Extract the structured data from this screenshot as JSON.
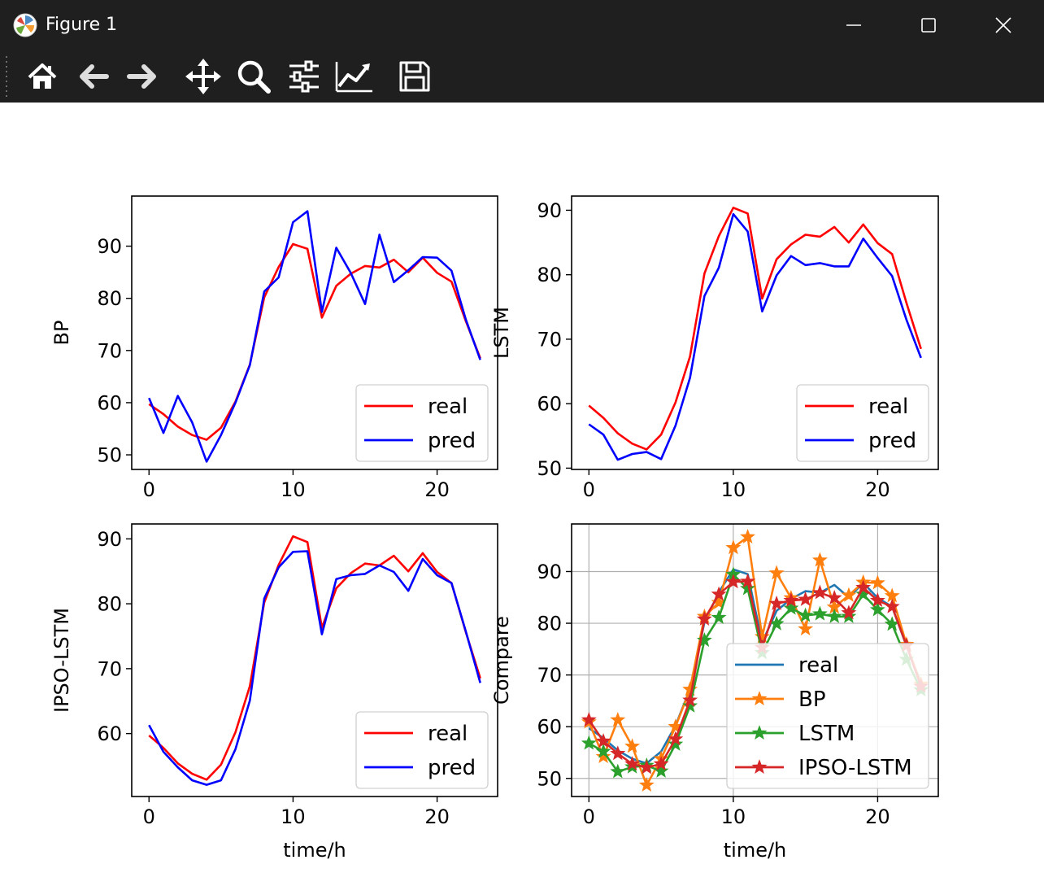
{
  "window": {
    "title": "Figure 1"
  },
  "toolbar": {
    "tools": [
      {
        "name": "home-icon"
      },
      {
        "name": "back-arrow-icon"
      },
      {
        "name": "forward-arrow-icon"
      },
      {
        "name": "pan-move-icon"
      },
      {
        "name": "zoom-magnifier-icon"
      },
      {
        "name": "subplots-config-icon"
      },
      {
        "name": "edit-axes-icon"
      },
      {
        "name": "save-disk-icon"
      }
    ]
  },
  "colors": {
    "real": "#ff0000",
    "pred": "#0000ff",
    "c_real": "#1f77b4",
    "c_bp": "#ff7f0e",
    "c_lstm": "#2ca02c",
    "c_ipso": "#d62728"
  },
  "chart_data": [
    {
      "type": "line",
      "xlabel": "",
      "ylabel": "BP",
      "xlim": [
        -1.2,
        24.2
      ],
      "ylim": [
        47.2,
        99.6
      ],
      "xticks": [
        0,
        10,
        20
      ],
      "yticks": [
        50,
        60,
        70,
        80,
        90
      ],
      "grid": false,
      "legend_position": "lower-right",
      "x": [
        0,
        1,
        2,
        3,
        4,
        5,
        6,
        7,
        8,
        9,
        10,
        11,
        12,
        13,
        14,
        15,
        16,
        17,
        18,
        19,
        20,
        21,
        22,
        23
      ],
      "series": [
        {
          "name": "real",
          "values": [
            59.7,
            57.8,
            55.4,
            53.8,
            52.9,
            55.2,
            60.2,
            67.3,
            80.2,
            86.0,
            90.4,
            89.5,
            76.3,
            82.4,
            84.7,
            86.2,
            85.9,
            87.4,
            85.0,
            87.8,
            84.9,
            83.2,
            75.6,
            68.5
          ]
        },
        {
          "name": "pred",
          "values": [
            60.9,
            54.2,
            61.3,
            56.2,
            48.7,
            53.8,
            60.0,
            67.2,
            81.3,
            84.0,
            94.6,
            96.7,
            77.4,
            89.7,
            84.9,
            78.9,
            92.2,
            83.1,
            85.4,
            87.9,
            87.8,
            85.3,
            75.9,
            68.2
          ]
        }
      ]
    },
    {
      "type": "line",
      "xlabel": "",
      "ylabel": "LSTM",
      "xlim": [
        -1.2,
        24.2
      ],
      "ylim": [
        49.8,
        92.2
      ],
      "xticks": [
        0,
        10,
        20
      ],
      "yticks": [
        50,
        60,
        70,
        80,
        90
      ],
      "grid": false,
      "legend_position": "lower-right",
      "x": [
        0,
        1,
        2,
        3,
        4,
        5,
        6,
        7,
        8,
        9,
        10,
        11,
        12,
        13,
        14,
        15,
        16,
        17,
        18,
        19,
        20,
        21,
        22,
        23
      ],
      "series": [
        {
          "name": "real",
          "values": [
            59.7,
            57.8,
            55.4,
            53.8,
            52.9,
            55.2,
            60.2,
            67.3,
            80.2,
            86.0,
            90.4,
            89.5,
            76.3,
            82.4,
            84.7,
            86.2,
            85.9,
            87.4,
            85.0,
            87.8,
            84.9,
            83.2,
            75.6,
            68.5
          ]
        },
        {
          "name": "pred",
          "values": [
            56.8,
            55.2,
            51.3,
            52.2,
            52.5,
            51.4,
            56.6,
            64.0,
            76.7,
            81.1,
            89.4,
            86.7,
            74.3,
            79.9,
            82.9,
            81.5,
            81.8,
            81.3,
            81.3,
            85.6,
            82.6,
            79.8,
            73.0,
            67.1
          ]
        }
      ]
    },
    {
      "type": "line",
      "xlabel": "time/h",
      "ylabel": "IPSO-LSTM",
      "xlim": [
        -1.2,
        24.2
      ],
      "ylim": [
        50.3,
        92.3
      ],
      "xticks": [
        0,
        10,
        20
      ],
      "yticks": [
        60,
        70,
        80,
        90
      ],
      "grid": false,
      "legend_position": "lower-right",
      "x": [
        0,
        1,
        2,
        3,
        4,
        5,
        6,
        7,
        8,
        9,
        10,
        11,
        12,
        13,
        14,
        15,
        16,
        17,
        18,
        19,
        20,
        21,
        22,
        23
      ],
      "series": [
        {
          "name": "real",
          "values": [
            59.7,
            57.8,
            55.4,
            53.8,
            52.9,
            55.2,
            60.2,
            67.3,
            80.2,
            86.0,
            90.4,
            89.5,
            76.3,
            82.4,
            84.7,
            86.2,
            85.9,
            87.4,
            85.0,
            87.8,
            84.9,
            83.2,
            75.6,
            68.5
          ]
        },
        {
          "name": "pred",
          "values": [
            61.3,
            57.2,
            54.8,
            52.8,
            52.1,
            52.8,
            57.6,
            65.1,
            80.8,
            85.6,
            88.0,
            88.1,
            75.3,
            83.8,
            84.4,
            84.6,
            85.9,
            84.9,
            82.0,
            86.9,
            84.4,
            83.2,
            75.7,
            67.8
          ]
        }
      ]
    },
    {
      "type": "line",
      "xlabel": "time/h",
      "ylabel": "Compare",
      "xlim": [
        -1.2,
        24.2
      ],
      "ylim": [
        46.5,
        99.2
      ],
      "xticks": [
        0,
        10,
        20
      ],
      "yticks": [
        50,
        60,
        70,
        80,
        90
      ],
      "grid": true,
      "legend_position": "lower-right",
      "x": [
        0,
        1,
        2,
        3,
        4,
        5,
        6,
        7,
        8,
        9,
        10,
        11,
        12,
        13,
        14,
        15,
        16,
        17,
        18,
        19,
        20,
        21,
        22,
        23
      ],
      "series": [
        {
          "name": "real",
          "marker": "none",
          "values": [
            59.7,
            57.8,
            55.4,
            53.8,
            52.9,
            55.2,
            60.2,
            67.3,
            80.2,
            86.0,
            90.4,
            89.5,
            76.3,
            82.4,
            84.7,
            86.2,
            85.9,
            87.4,
            85.0,
            87.8,
            84.9,
            83.2,
            75.6,
            68.5
          ]
        },
        {
          "name": "BP",
          "marker": "star",
          "values": [
            60.9,
            54.2,
            61.3,
            56.2,
            48.7,
            53.8,
            60.0,
            67.2,
            81.3,
            84.0,
            94.6,
            96.7,
            77.4,
            89.7,
            84.9,
            78.9,
            92.2,
            83.1,
            85.4,
            87.9,
            87.8,
            85.3,
            75.9,
            68.2
          ]
        },
        {
          "name": "LSTM",
          "marker": "star",
          "values": [
            56.8,
            55.2,
            51.3,
            52.2,
            52.5,
            51.4,
            56.6,
            64.0,
            76.7,
            81.1,
            89.4,
            86.7,
            74.3,
            79.9,
            82.9,
            81.5,
            81.8,
            81.3,
            81.3,
            85.6,
            82.6,
            79.8,
            73.0,
            67.1
          ]
        },
        {
          "name": "IPSO-LSTM",
          "marker": "star",
          "values": [
            61.3,
            57.2,
            54.8,
            52.8,
            52.1,
            52.8,
            57.6,
            65.1,
            80.8,
            85.6,
            88.0,
            88.1,
            75.3,
            83.8,
            84.4,
            84.6,
            85.9,
            84.9,
            82.0,
            86.9,
            84.4,
            83.2,
            75.7,
            67.8
          ]
        }
      ]
    }
  ]
}
